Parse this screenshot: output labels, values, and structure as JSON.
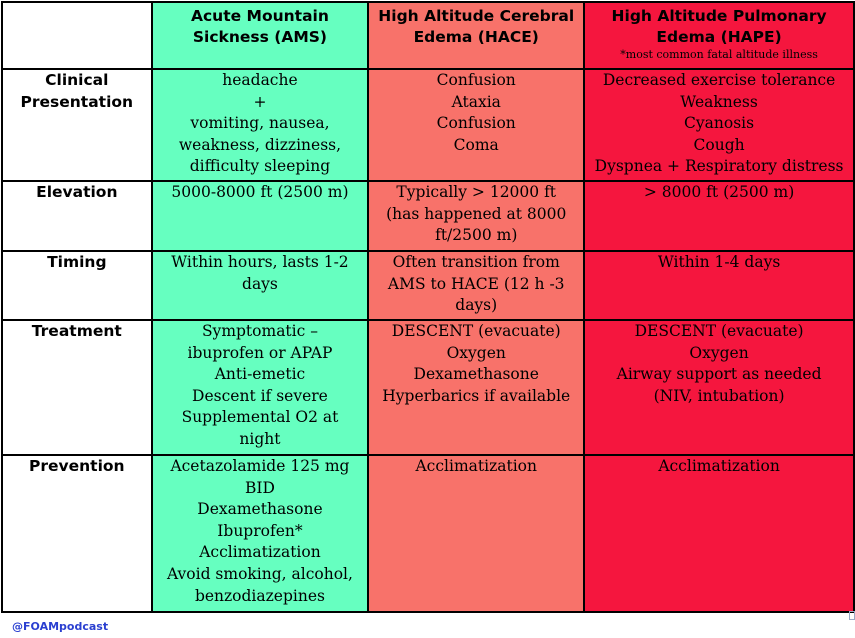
{
  "headers": {
    "ams": [
      "Acute Mountain",
      "Sickness (AMS)"
    ],
    "hace": [
      "High Altitude Cerebral",
      "Edema (HACE)"
    ],
    "hape": [
      "High Altitude Pulmonary",
      "Edema (HAPE)"
    ],
    "hape_note": "*most common fatal altitude illness"
  },
  "rows": [
    {
      "label": [
        "Clinical",
        "Presentation"
      ],
      "ams": [
        "headache",
        "+",
        "vomiting, nausea,",
        "weakness, dizziness,",
        "difficulty sleeping"
      ],
      "hace": [
        "Confusion",
        "Ataxia",
        "Confusion",
        "Coma"
      ],
      "hape": [
        "Decreased exercise tolerance",
        "Weakness",
        "Cyanosis",
        "Cough",
        "Dyspnea + Respiratory distress"
      ]
    },
    {
      "label": [
        "Elevation"
      ],
      "ams": [
        "5000-8000 ft (2500 m)"
      ],
      "hace": [
        "Typically > 12000 ft",
        "(has happened at 8000",
        "ft/2500 m)"
      ],
      "hape": [
        "> 8000 ft (2500 m)"
      ]
    },
    {
      "label": [
        "Timing"
      ],
      "ams": [
        "Within hours, lasts 1-2",
        "days"
      ],
      "hace": [
        "Often transition from",
        "AMS to HACE (12 h -3",
        "days)"
      ],
      "hape": [
        "Within 1-4 days"
      ]
    },
    {
      "label": [
        "Treatment"
      ],
      "ams": [
        "Symptomatic –",
        "ibuprofen or APAP",
        "Anti-emetic",
        "Descent if severe",
        "Supplemental O2 at",
        "night"
      ],
      "hace": [
        "DESCENT (evacuate)",
        "Oxygen",
        "Dexamethasone",
        "Hyperbarics if available"
      ],
      "hape": [
        "DESCENT (evacuate)",
        "Oxygen",
        "Airway support as needed",
        "(NIV, intubation)"
      ]
    },
    {
      "label": [
        "Prevention"
      ],
      "ams": [
        "Acetazolamide 125 mg",
        "BID",
        "Dexamethasone",
        "Ibuprofen*",
        "Acclimatization",
        "Avoid smoking, alcohol,",
        "benzodiazepines"
      ],
      "hace": [
        "Acclimatization"
      ],
      "hape": [
        "Acclimatization"
      ]
    }
  ],
  "footer": "@FOAMpodcast",
  "colors": {
    "ams": "#66ffc0",
    "hace": "#f8726a",
    "hape": "#f5163e",
    "footer_text": "#2a3fd0"
  }
}
